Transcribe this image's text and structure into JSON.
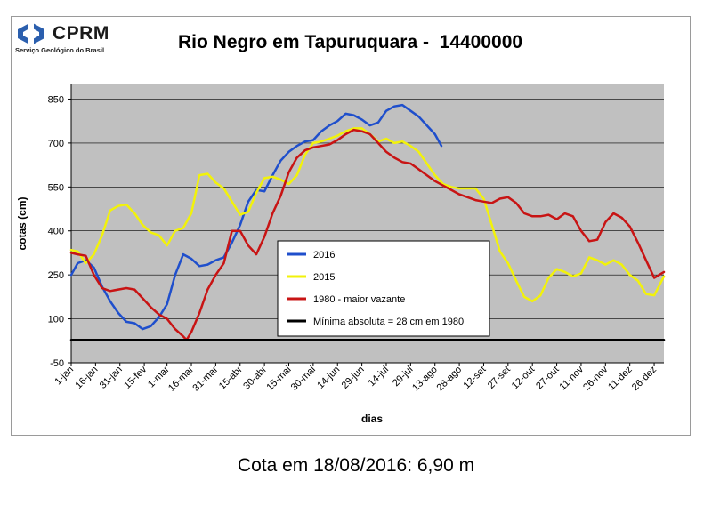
{
  "logo": {
    "name": "CPRM",
    "subtitle": "Serviço Geológico do Brasil"
  },
  "caption": "Cota em 18/08/2016: 6,90 m",
  "chart_data": {
    "type": "line",
    "title": "Rio Negro em Tapuruquara -  14400000",
    "xlabel": "dias",
    "ylabel": "cotas (cm)",
    "ylim": [
      -50,
      900
    ],
    "yticks": [
      -50,
      100,
      250,
      400,
      550,
      700,
      850
    ],
    "xlim": [
      1,
      366
    ],
    "xticks": [
      {
        "day": 1,
        "label": "1-jan"
      },
      {
        "day": 16,
        "label": "16-jan"
      },
      {
        "day": 31,
        "label": "31-jan"
      },
      {
        "day": 46,
        "label": "15-fev"
      },
      {
        "day": 60,
        "label": "1-mar"
      },
      {
        "day": 75,
        "label": "16-mar"
      },
      {
        "day": 90,
        "label": "31-mar"
      },
      {
        "day": 105,
        "label": "15-abr"
      },
      {
        "day": 120,
        "label": "30-abr"
      },
      {
        "day": 135,
        "label": "15-mai"
      },
      {
        "day": 150,
        "label": "30-mai"
      },
      {
        "day": 165,
        "label": "14-jun"
      },
      {
        "day": 180,
        "label": "29-jun"
      },
      {
        "day": 195,
        "label": "14-jul"
      },
      {
        "day": 210,
        "label": "29-jul"
      },
      {
        "day": 225,
        "label": "13-ago"
      },
      {
        "day": 240,
        "label": "28-ago"
      },
      {
        "day": 255,
        "label": "12-set"
      },
      {
        "day": 270,
        "label": "27-set"
      },
      {
        "day": 285,
        "label": "12-out"
      },
      {
        "day": 300,
        "label": "27-out"
      },
      {
        "day": 315,
        "label": "11-nov"
      },
      {
        "day": 330,
        "label": "26-nov"
      },
      {
        "day": 345,
        "label": "11-dez"
      },
      {
        "day": 360,
        "label": "26-dez"
      }
    ],
    "grid": true,
    "legend_position": "center",
    "series": [
      {
        "name": "2016",
        "color": "#1f4fcc",
        "points": [
          [
            1,
            250
          ],
          [
            5,
            290
          ],
          [
            10,
            300
          ],
          [
            15,
            275
          ],
          [
            20,
            210
          ],
          [
            25,
            160
          ],
          [
            30,
            120
          ],
          [
            35,
            90
          ],
          [
            40,
            85
          ],
          [
            45,
            65
          ],
          [
            50,
            75
          ],
          [
            55,
            105
          ],
          [
            60,
            150
          ],
          [
            65,
            250
          ],
          [
            70,
            320
          ],
          [
            75,
            305
          ],
          [
            80,
            280
          ],
          [
            85,
            285
          ],
          [
            90,
            300
          ],
          [
            95,
            310
          ],
          [
            100,
            360
          ],
          [
            105,
            420
          ],
          [
            110,
            500
          ],
          [
            115,
            540
          ],
          [
            120,
            535
          ],
          [
            125,
            590
          ],
          [
            130,
            640
          ],
          [
            135,
            670
          ],
          [
            140,
            690
          ],
          [
            145,
            705
          ],
          [
            150,
            710
          ],
          [
            155,
            740
          ],
          [
            160,
            760
          ],
          [
            165,
            775
          ],
          [
            170,
            800
          ],
          [
            175,
            795
          ],
          [
            180,
            780
          ],
          [
            185,
            760
          ],
          [
            190,
            770
          ],
          [
            195,
            810
          ],
          [
            200,
            825
          ],
          [
            205,
            830
          ],
          [
            210,
            810
          ],
          [
            215,
            790
          ],
          [
            220,
            760
          ],
          [
            225,
            730
          ],
          [
            229,
            690
          ]
        ]
      },
      {
        "name": "2015",
        "color": "#f2f20a",
        "points": [
          [
            1,
            335
          ],
          [
            5,
            330
          ],
          [
            10,
            290
          ],
          [
            15,
            320
          ],
          [
            20,
            385
          ],
          [
            25,
            470
          ],
          [
            30,
            485
          ],
          [
            35,
            490
          ],
          [
            40,
            460
          ],
          [
            45,
            420
          ],
          [
            50,
            395
          ],
          [
            55,
            385
          ],
          [
            60,
            350
          ],
          [
            65,
            400
          ],
          [
            70,
            410
          ],
          [
            75,
            460
          ],
          [
            80,
            590
          ],
          [
            85,
            595
          ],
          [
            90,
            565
          ],
          [
            95,
            545
          ],
          [
            100,
            500
          ],
          [
            105,
            455
          ],
          [
            110,
            465
          ],
          [
            115,
            530
          ],
          [
            120,
            580
          ],
          [
            125,
            585
          ],
          [
            130,
            575
          ],
          [
            135,
            560
          ],
          [
            140,
            590
          ],
          [
            145,
            660
          ],
          [
            150,
            700
          ],
          [
            155,
            705
          ],
          [
            160,
            715
          ],
          [
            165,
            725
          ],
          [
            170,
            740
          ],
          [
            175,
            750
          ],
          [
            180,
            750
          ],
          [
            185,
            730
          ],
          [
            190,
            705
          ],
          [
            195,
            715
          ],
          [
            200,
            700
          ],
          [
            205,
            705
          ],
          [
            210,
            690
          ],
          [
            215,
            670
          ],
          [
            220,
            630
          ],
          [
            225,
            590
          ],
          [
            230,
            560
          ],
          [
            235,
            550
          ],
          [
            240,
            545
          ],
          [
            245,
            545
          ],
          [
            250,
            545
          ],
          [
            255,
            510
          ],
          [
            260,
            420
          ],
          [
            265,
            330
          ],
          [
            270,
            290
          ],
          [
            275,
            230
          ],
          [
            280,
            175
          ],
          [
            285,
            160
          ],
          [
            290,
            180
          ],
          [
            295,
            240
          ],
          [
            300,
            270
          ],
          [
            305,
            260
          ],
          [
            310,
            245
          ],
          [
            315,
            255
          ],
          [
            320,
            310
          ],
          [
            325,
            300
          ],
          [
            330,
            285
          ],
          [
            335,
            300
          ],
          [
            340,
            285
          ],
          [
            345,
            250
          ],
          [
            350,
            230
          ],
          [
            355,
            185
          ],
          [
            360,
            180
          ],
          [
            366,
            245
          ]
        ]
      },
      {
        "name": "1980 - maior vazante",
        "color": "#c81414",
        "points": [
          [
            1,
            325
          ],
          [
            5,
            320
          ],
          [
            10,
            315
          ],
          [
            15,
            250
          ],
          [
            20,
            205
          ],
          [
            25,
            195
          ],
          [
            30,
            200
          ],
          [
            35,
            205
          ],
          [
            40,
            200
          ],
          [
            45,
            170
          ],
          [
            50,
            140
          ],
          [
            55,
            115
          ],
          [
            60,
            100
          ],
          [
            65,
            65
          ],
          [
            70,
            40
          ],
          [
            72,
            28
          ],
          [
            75,
            55
          ],
          [
            80,
            120
          ],
          [
            85,
            200
          ],
          [
            90,
            250
          ],
          [
            95,
            290
          ],
          [
            100,
            400
          ],
          [
            105,
            400
          ],
          [
            110,
            350
          ],
          [
            115,
            320
          ],
          [
            120,
            380
          ],
          [
            125,
            460
          ],
          [
            130,
            520
          ],
          [
            135,
            600
          ],
          [
            140,
            650
          ],
          [
            145,
            675
          ],
          [
            150,
            685
          ],
          [
            155,
            690
          ],
          [
            160,
            695
          ],
          [
            165,
            710
          ],
          [
            170,
            730
          ],
          [
            175,
            745
          ],
          [
            180,
            740
          ],
          [
            185,
            730
          ],
          [
            190,
            700
          ],
          [
            195,
            670
          ],
          [
            200,
            650
          ],
          [
            205,
            635
          ],
          [
            210,
            630
          ],
          [
            215,
            610
          ],
          [
            220,
            590
          ],
          [
            225,
            570
          ],
          [
            230,
            555
          ],
          [
            235,
            540
          ],
          [
            240,
            525
          ],
          [
            245,
            515
          ],
          [
            250,
            505
          ],
          [
            255,
            500
          ],
          [
            260,
            495
          ],
          [
            265,
            510
          ],
          [
            270,
            515
          ],
          [
            275,
            495
          ],
          [
            280,
            460
          ],
          [
            285,
            450
          ],
          [
            290,
            450
          ],
          [
            295,
            455
          ],
          [
            300,
            440
          ],
          [
            305,
            460
          ],
          [
            310,
            450
          ],
          [
            315,
            400
          ],
          [
            320,
            365
          ],
          [
            325,
            370
          ],
          [
            330,
            430
          ],
          [
            335,
            460
          ],
          [
            340,
            445
          ],
          [
            345,
            415
          ],
          [
            350,
            360
          ],
          [
            355,
            300
          ],
          [
            360,
            240
          ],
          [
            366,
            260
          ]
        ]
      },
      {
        "name": "Mínima absoluta = 28 cm em 1980",
        "color": "#000000",
        "points": [
          [
            1,
            28
          ],
          [
            366,
            28
          ]
        ]
      }
    ]
  }
}
